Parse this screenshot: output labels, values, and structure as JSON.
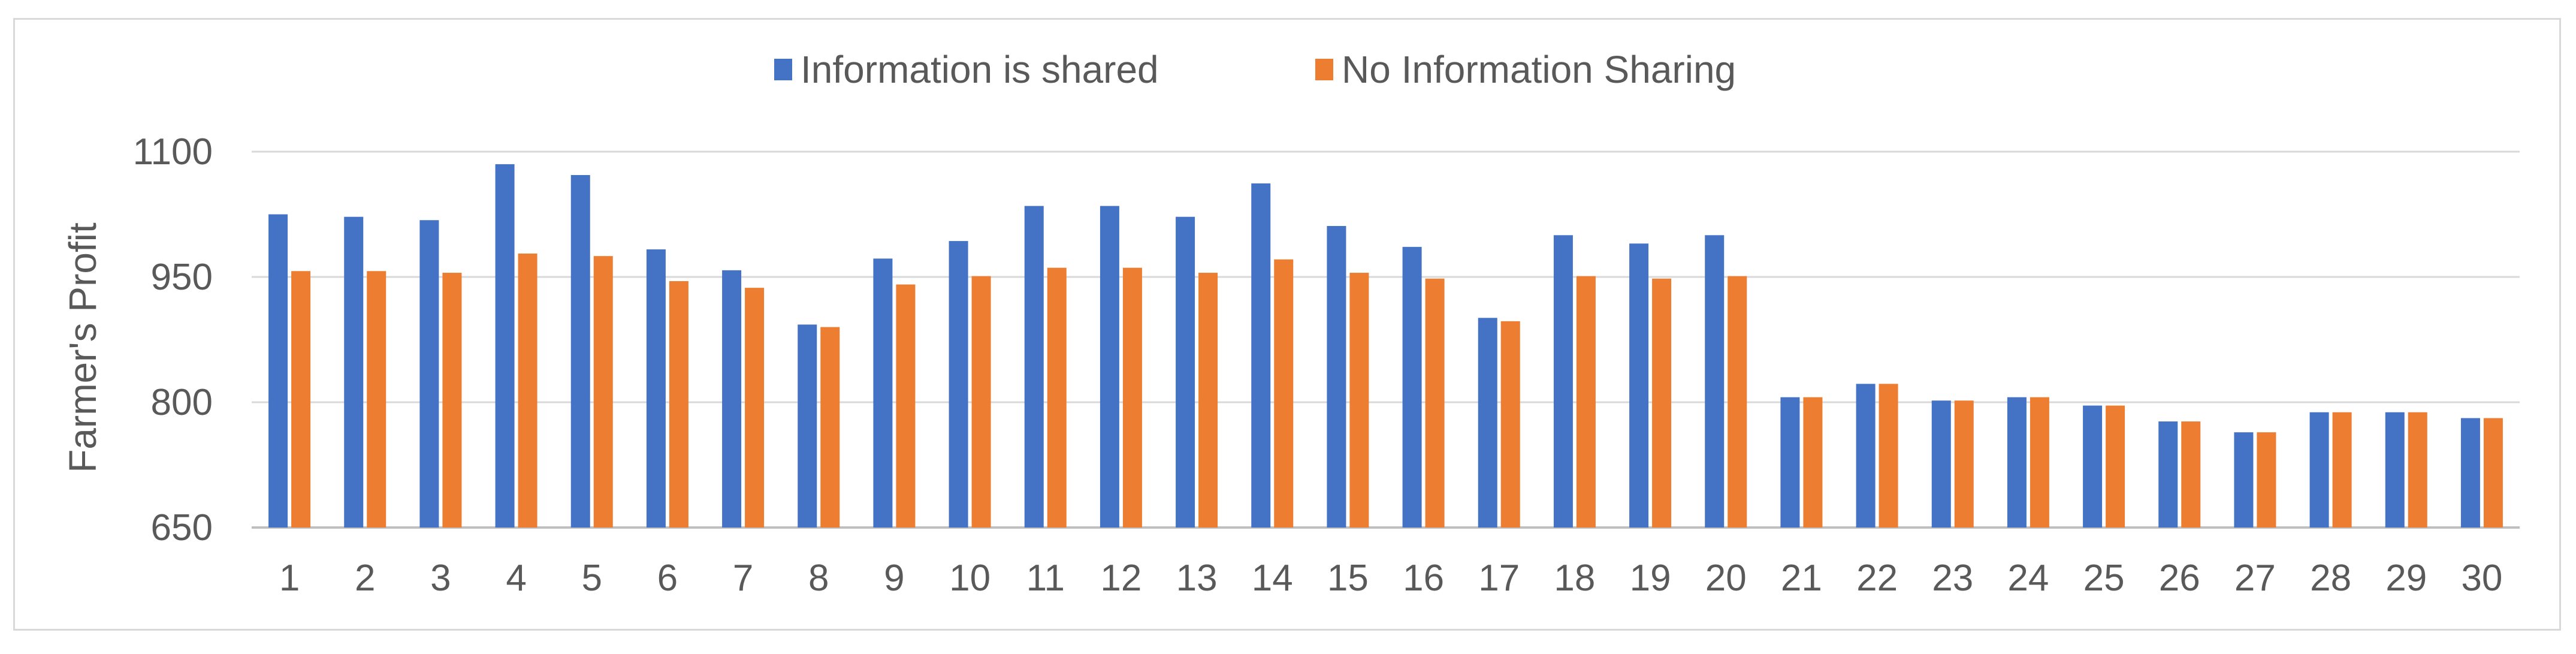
{
  "chart_data": {
    "type": "bar",
    "title": "",
    "xlabel": "",
    "ylabel": "Farmer's Profit",
    "ylim": [
      650,
      1100
    ],
    "yticks": [
      650,
      800,
      950,
      1100
    ],
    "grid": true,
    "legend_position": "top-center",
    "categories": [
      "1",
      "2",
      "3",
      "4",
      "5",
      "6",
      "7",
      "8",
      "9",
      "10",
      "11",
      "12",
      "13",
      "14",
      "15",
      "16",
      "17",
      "18",
      "19",
      "20",
      "21",
      "22",
      "23",
      "24",
      "25",
      "26",
      "27",
      "28",
      "29",
      "30"
    ],
    "series": [
      {
        "name": "Information is shared",
        "color": "#4472c4",
        "values": [
          1025,
          1022,
          1018,
          1085,
          1072,
          983,
          958,
          893,
          972,
          993,
          1035,
          1035,
          1022,
          1062,
          1011,
          986,
          901,
          1000,
          990,
          1000,
          806,
          822,
          802,
          806,
          796,
          777,
          764,
          788,
          788,
          781
        ]
      },
      {
        "name": "No Information Sharing",
        "color": "#ed7d31",
        "values": [
          957,
          957,
          955,
          978,
          975,
          945,
          937,
          890,
          941,
          951,
          961,
          961,
          955,
          971,
          955,
          948,
          897,
          951,
          948,
          951,
          806,
          822,
          802,
          806,
          796,
          777,
          764,
          788,
          788,
          781
        ]
      }
    ]
  }
}
